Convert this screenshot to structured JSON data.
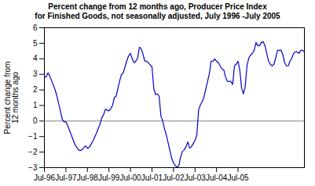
{
  "chart_data": {
    "type": "line",
    "title": "Percent change from 12 months ago, Producer Price Index\nfor Finished Goods, not seasonally adjusted, July 1996 -July 2005",
    "y_label": "Percent change from\n12 months ago",
    "color": "#0000CC",
    "grid": false,
    "ylim": [
      -3,
      6
    ],
    "yticks": [
      -3,
      -2,
      -1,
      0,
      1,
      2,
      3,
      4,
      5,
      6
    ],
    "categories": [
      "Jul-96",
      null,
      null,
      null,
      null,
      null,
      null,
      null,
      null,
      null,
      null,
      null,
      "Jul-97",
      null,
      null,
      null,
      null,
      null,
      null,
      null,
      null,
      null,
      null,
      null,
      "Jul-98",
      null,
      null,
      null,
      null,
      null,
      null,
      null,
      null,
      null,
      null,
      null,
      "Jul-99",
      null,
      null,
      null,
      null,
      null,
      null,
      null,
      null,
      null,
      null,
      null,
      "Jul-00",
      null,
      null,
      null,
      null,
      null,
      null,
      null,
      null,
      null,
      null,
      null,
      "Jul-01",
      null,
      null,
      null,
      null,
      null,
      null,
      null,
      null,
      null,
      null,
      null,
      "Jul-02",
      null,
      null,
      null,
      null,
      null,
      null,
      null,
      null,
      null,
      null,
      null,
      "Jul-03",
      null,
      null,
      null,
      null,
      null,
      null,
      null,
      null,
      null,
      null,
      null,
      "Jul-04",
      null,
      null,
      null,
      null,
      null,
      null,
      null,
      null,
      null,
      null,
      null,
      "Jul-05",
      null,
      null,
      null,
      null,
      null,
      null,
      null,
      null,
      null,
      null,
      null,
      null,
      null,
      null,
      null,
      null,
      null,
      null,
      null,
      null,
      null,
      null,
      null,
      null,
      null,
      null,
      null,
      null,
      null,
      null,
      null,
      null,
      null,
      null,
      null,
      null,
      null
    ],
    "values": [
      2.8,
      2.85,
      3.1,
      2.9,
      2.6,
      2.3,
      2.0,
      1.6,
      1.1,
      0.6,
      0.1,
      -0.05,
      -0.05,
      -0.3,
      -0.6,
      -0.9,
      -1.2,
      -1.5,
      -1.7,
      -1.85,
      -1.9,
      -1.85,
      -1.7,
      -1.6,
      -1.75,
      -1.7,
      -1.5,
      -1.3,
      -1.05,
      -0.8,
      -0.5,
      -0.2,
      0.2,
      0.4,
      0.75,
      0.7,
      0.65,
      0.8,
      1.0,
      1.5,
      1.6,
      2.1,
      2.6,
      3.0,
      3.1,
      3.5,
      3.9,
      4.2,
      4.35,
      4.0,
      3.75,
      3.85,
      4.05,
      4.75,
      4.65,
      4.3,
      3.85,
      3.85,
      3.75,
      3.6,
      3.5,
      2.1,
      1.7,
      1.75,
      1.6,
      0.3,
      0.0,
      -0.5,
      -0.9,
      -1.4,
      -1.9,
      -2.4,
      -2.7,
      -2.85,
      -3.0,
      -2.85,
      -2.3,
      -1.95,
      -1.85,
      -1.65,
      -1.35,
      -1.75,
      -1.65,
      -1.45,
      -1.25,
      -0.9,
      0.7,
      1.05,
      1.25,
      1.55,
      2.05,
      2.55,
      3.05,
      3.85,
      3.85,
      4.0,
      3.85,
      3.75,
      3.55,
      3.35,
      3.3,
      2.85,
      2.55,
      2.55,
      2.55,
      2.35,
      3.55,
      3.65,
      3.85,
      3.25,
      2.1,
      1.75,
      2.25,
      3.55,
      4.05,
      4.25,
      4.35,
      4.55,
      5.05,
      4.85,
      4.85,
      5.05,
      5.1,
      4.85,
      4.35,
      3.85,
      3.65,
      3.55,
      3.65,
      4.05,
      4.55,
      4.55,
      4.55,
      4.25,
      3.75,
      3.55,
      3.55,
      3.85,
      4.05,
      4.35,
      4.45,
      4.45,
      4.35,
      4.55,
      4.55,
      4.45
    ]
  }
}
